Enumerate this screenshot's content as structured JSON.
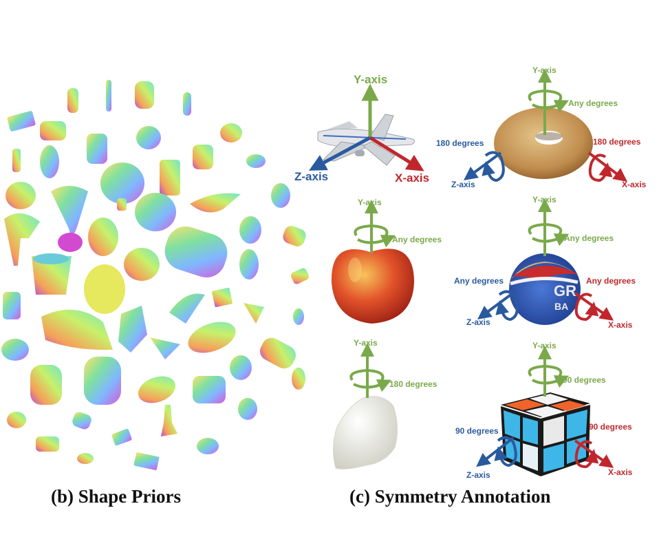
{
  "captions": {
    "shape_priors": "(b) Shape Priors",
    "symmetry": "(c) Symmetry Annotation"
  },
  "airplane": {
    "y": "Y-axis",
    "x": "X-axis",
    "z": "Z-axis"
  },
  "donut": {
    "y": "Y-axis",
    "y_deg": "Any degrees",
    "z": "Z-axis",
    "z_deg": "180 degrees",
    "x": "X-axis",
    "x_deg": "180 degrees"
  },
  "apple": {
    "y": "Y-axis",
    "y_deg": "Any degrees"
  },
  "ball": {
    "y": "Y-axis",
    "y_deg": "Any degrees",
    "z": "Z-axis",
    "z_deg": "Any degrees",
    "x": "X-axis",
    "x_deg": "Any degrees"
  },
  "rock": {
    "y": "Y-axis",
    "y_deg": "180 degrees"
  },
  "cube": {
    "y": "Y-axis",
    "y_deg": "90 degrees",
    "z": "Z-axis",
    "z_deg": "90 degrees",
    "x": "X-axis",
    "x_deg": "90 degrees"
  },
  "colors": {
    "green": "#7aa94a",
    "blue": "#2a5a9e",
    "red": "#c0272d"
  }
}
